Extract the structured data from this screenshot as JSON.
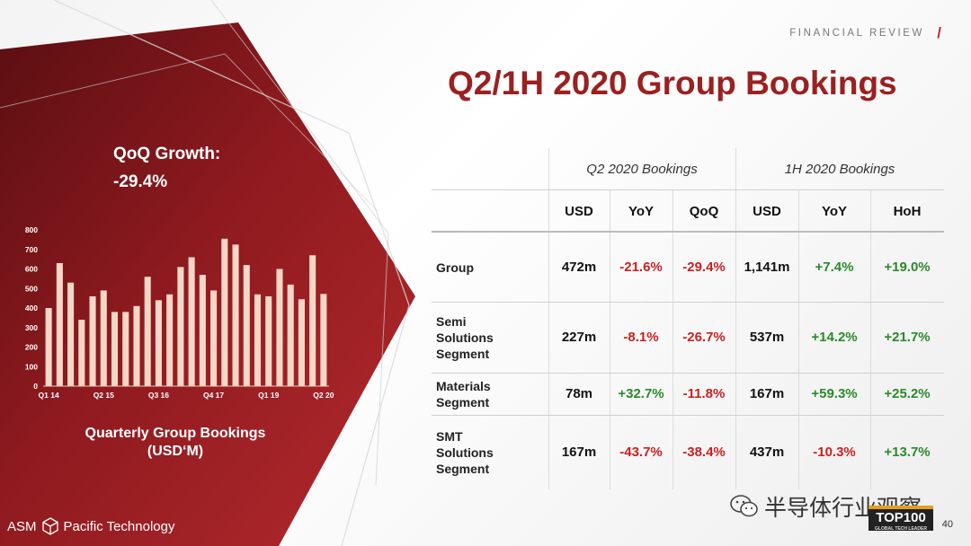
{
  "header": {
    "section": "FINANCIAL REVIEW",
    "slash": "/"
  },
  "title": "Q2/1H 2020 Group Bookings",
  "growth": {
    "label": "QoQ Growth:",
    "value": "-29.4%"
  },
  "chart_caption": [
    "Quarterly Group Bookings",
    "(USD‘M)"
  ],
  "chart_data": {
    "type": "bar",
    "title": "Quarterly Group Bookings (USD‘M)",
    "ylim": [
      0,
      800
    ],
    "yticks": [
      0,
      100,
      200,
      300,
      400,
      500,
      600,
      700,
      800
    ],
    "xtick_labels": [
      "Q1 14",
      "Q2 15",
      "Q3 16",
      "Q4 17",
      "Q1 19",
      "Q2 20"
    ],
    "xtick_indices": [
      0,
      5,
      10,
      15,
      20,
      25
    ],
    "categories": [
      "Q1 14",
      "Q2 14",
      "Q3 14",
      "Q4 14",
      "Q1 15",
      "Q2 15",
      "Q3 15",
      "Q4 15",
      "Q1 16",
      "Q2 16",
      "Q3 16",
      "Q4 16",
      "Q1 17",
      "Q2 17",
      "Q3 17",
      "Q4 17",
      "Q1 18",
      "Q2 18",
      "Q3 18",
      "Q4 18",
      "Q1 19",
      "Q2 19",
      "Q3 19",
      "Q4 19",
      "Q1 20",
      "Q2 20"
    ],
    "values": [
      400,
      630,
      530,
      340,
      460,
      490,
      380,
      380,
      410,
      560,
      440,
      470,
      610,
      660,
      570,
      490,
      755,
      725,
      620,
      470,
      460,
      600,
      520,
      445,
      670,
      472
    ],
    "bar_color": "#f6d6c6",
    "grid": false
  },
  "table": {
    "group_headers": [
      "Q2 2020 Bookings",
      "1H 2020 Bookings"
    ],
    "columns": [
      "USD",
      "YoY",
      "QoQ",
      "USD",
      "YoY",
      "HoH"
    ],
    "rows": [
      {
        "label": [
          "Group"
        ],
        "cells": [
          "472m",
          "-21.6%",
          "-29.4%",
          "1,141m",
          "+7.4%",
          "+19.0%"
        ]
      },
      {
        "label": [
          "Semi Solutions",
          "Segment"
        ],
        "cells": [
          "227m",
          "-8.1%",
          "-26.7%",
          "537m",
          "+14.2%",
          "+21.7%"
        ]
      },
      {
        "label": [
          "Materials",
          "Segment"
        ],
        "cells": [
          "78m",
          "+32.7%",
          "-11.8%",
          "167m",
          "+59.3%",
          "+25.2%"
        ]
      },
      {
        "label": [
          "SMT Solutions",
          "Segment"
        ],
        "cells": [
          "167m",
          "-43.7%",
          "-38.4%",
          "437m",
          "-10.3%",
          "+13.7%"
        ]
      }
    ]
  },
  "colors": {
    "brand_red": "#9b2020",
    "negative": "#cc1f1f",
    "positive": "#2a8a2a"
  },
  "logo": {
    "left": "ASM",
    "right": "Pacific Technology",
    "icon": "cube-icon"
  },
  "watermark": {
    "text": "半导体行业观察",
    "icon": "wechat-icon"
  },
  "badge": {
    "text": "TOP100",
    "sub": "GLOBAL TECH LEADER"
  },
  "page_number": "40"
}
